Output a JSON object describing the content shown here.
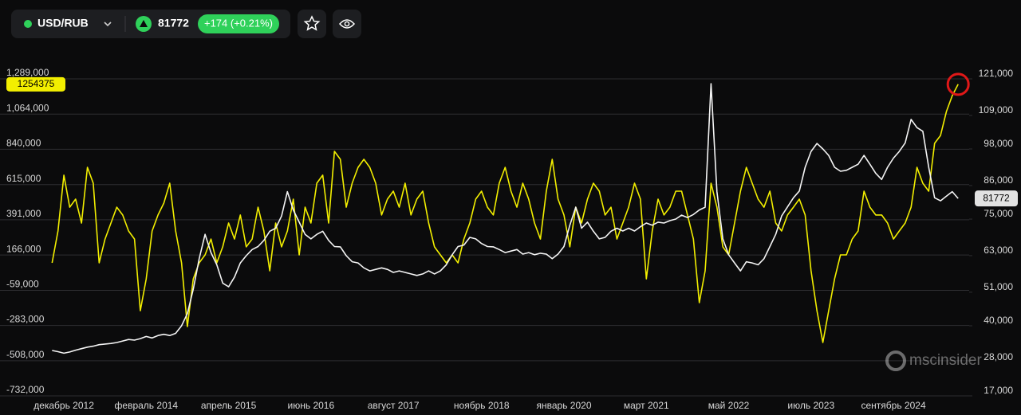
{
  "header": {
    "symbol": "USD/RUB",
    "change": "+174 (+0.21%)"
  },
  "watermark": "mscinsider",
  "chart_data": {
    "type": "line",
    "categories": [
      null,
      null,
      "декабрь 2012",
      null,
      null,
      null,
      null,
      null,
      null,
      null,
      null,
      null,
      null,
      null,
      null,
      null,
      "февраль 2014",
      null,
      null,
      null,
      null,
      null,
      null,
      null,
      null,
      null,
      null,
      null,
      null,
      null,
      "апрель 2015",
      null,
      null,
      null,
      null,
      null,
      null,
      null,
      null,
      null,
      null,
      null,
      null,
      null,
      "июнь 2016",
      null,
      null,
      null,
      null,
      null,
      null,
      null,
      null,
      null,
      null,
      null,
      null,
      null,
      "август 2017",
      null,
      null,
      null,
      null,
      null,
      null,
      null,
      null,
      null,
      null,
      null,
      null,
      null,
      null,
      "ноябрь 2018",
      null,
      null,
      null,
      null,
      null,
      null,
      null,
      null,
      null,
      null,
      null,
      null,
      null,
      "январь 2020",
      null,
      null,
      null,
      null,
      null,
      null,
      null,
      null,
      null,
      null,
      null,
      null,
      null,
      "март 2021",
      null,
      null,
      null,
      null,
      null,
      null,
      null,
      null,
      null,
      null,
      null,
      null,
      null,
      "май 2022",
      null,
      null,
      null,
      null,
      null,
      null,
      null,
      null,
      null,
      null,
      null,
      null,
      null,
      "июль 2023",
      null,
      null,
      null,
      null,
      null,
      null,
      null,
      null,
      null,
      null,
      null,
      null,
      null,
      "сентябрь 2024",
      null,
      null,
      null,
      null,
      null,
      null,
      null,
      null,
      null,
      null,
      null
    ],
    "series": [
      {
        "color": "#f2ee00",
        "axis": "y",
        "values": [
          116000,
          319000,
          675000,
          471000,
          522000,
          370000,
          725000,
          624000,
          116000,
          268000,
          370000,
          471000,
          421000,
          319000,
          268000,
          -189000,
          14000,
          319000,
          421000,
          497000,
          624000,
          319000,
          116000,
          -290000,
          14000,
          116000,
          167000,
          268000,
          116000,
          218000,
          370000,
          268000,
          421000,
          218000,
          268000,
          471000,
          319000,
          65000,
          370000,
          218000,
          319000,
          522000,
          167000,
          471000,
          370000,
          624000,
          675000,
          370000,
          827000,
          776000,
          471000,
          624000,
          725000,
          776000,
          725000,
          624000,
          421000,
          522000,
          573000,
          471000,
          624000,
          421000,
          522000,
          573000,
          370000,
          218000,
          167000,
          116000,
          167000,
          116000,
          268000,
          370000,
          522000,
          573000,
          471000,
          421000,
          624000,
          725000,
          573000,
          471000,
          624000,
          522000,
          370000,
          268000,
          573000,
          776000,
          522000,
          421000,
          218000,
          471000,
          370000,
          522000,
          624000,
          573000,
          421000,
          471000,
          268000,
          370000,
          471000,
          624000,
          522000,
          14000,
          319000,
          522000,
          421000,
          471000,
          573000,
          573000,
          421000,
          268000,
          -138000,
          65000,
          624000,
          471000,
          218000,
          167000,
          370000,
          573000,
          725000,
          624000,
          522000,
          471000,
          573000,
          370000,
          319000,
          421000,
          471000,
          522000,
          421000,
          65000,
          -189000,
          -392000,
          -189000,
          14000,
          167000,
          167000,
          268000,
          319000,
          573000,
          471000,
          421000,
          421000,
          370000,
          268000,
          319000,
          370000,
          471000,
          725000,
          624000,
          573000,
          878000,
          928000,
          1081000,
          1182000,
          1254375
        ]
      },
      {
        "color": "#f4f4f4",
        "axis": "y2",
        "values": [
          31900,
          31500,
          31000,
          31400,
          32000,
          32500,
          33000,
          33300,
          33800,
          34000,
          34200,
          34500,
          35000,
          35500,
          35300,
          35800,
          36500,
          36000,
          36800,
          37200,
          36800,
          37500,
          40000,
          44000,
          52000,
          62000,
          70000,
          64000,
          60000,
          54000,
          52800,
          56000,
          60600,
          63000,
          65000,
          66000,
          68000,
          71000,
          72000,
          76000,
          84000,
          78000,
          74000,
          70000,
          68500,
          70000,
          71000,
          68000,
          66000,
          65900,
          63000,
          61000,
          60600,
          59000,
          58000,
          58500,
          59000,
          58500,
          57500,
          58000,
          57500,
          57000,
          56500,
          57000,
          58000,
          57000,
          58000,
          60000,
          63300,
          66000,
          66500,
          69000,
          68500,
          67000,
          66000,
          65900,
          65000,
          64000,
          64500,
          65000,
          63500,
          64000,
          63300,
          63800,
          63500,
          62000,
          63500,
          66000,
          73000,
          78900,
          72000,
          74000,
          71000,
          68500,
          69000,
          71000,
          72000,
          71100,
          72000,
          71100,
          72500,
          73700,
          73000,
          74000,
          73700,
          74500,
          75000,
          76300,
          75500,
          76500,
          78000,
          78900,
          119400,
          84000,
          68500,
          63300,
          60600,
          58000,
          61000,
          60600,
          60000,
          62000,
          66000,
          70000,
          76000,
          79000,
          82000,
          84200,
          92000,
          97200,
          99800,
          98000,
          95900,
          92000,
          90700,
          91000,
          92000,
          93000,
          95900,
          93000,
          90000,
          88000,
          92000,
          95000,
          97200,
          100000,
          107700,
          105000,
          103800,
          92000,
          82000,
          81000,
          82500,
          84000,
          81772
        ]
      }
    ],
    "ylim": [
      -732000,
      1289000
    ],
    "yticks": [
      {
        "value": -732000,
        "label": "-732,000"
      },
      {
        "value": -508000,
        "label": "-508,000"
      },
      {
        "value": -283000,
        "label": "-283,000"
      },
      {
        "value": -59000,
        "label": "-59,000"
      },
      {
        "value": 166000,
        "label": "166,000"
      },
      {
        "value": 391000,
        "label": "391,000"
      },
      {
        "value": 615000,
        "label": "615,000"
      },
      {
        "value": 840000,
        "label": "840,000"
      },
      {
        "value": 1064000,
        "label": "1,064,000"
      },
      {
        "value": 1289000,
        "label": "1,289,000"
      }
    ],
    "y2lim": [
      17000,
      121000
    ],
    "y2ticks": [
      {
        "value": 17000,
        "label": "17,000"
      },
      {
        "value": 28000,
        "label": "28,000"
      },
      {
        "value": 40000,
        "label": "40,000"
      },
      {
        "value": 51000,
        "label": "51,000"
      },
      {
        "value": 63000,
        "label": "63,000"
      },
      {
        "value": 75000,
        "label": "75,000"
      },
      {
        "value": 86000,
        "label": "86,000"
      },
      {
        "value": 98000,
        "label": "98,000"
      },
      {
        "value": 109000,
        "label": "109,000"
      },
      {
        "value": 121000,
        "label": "121,000"
      }
    ],
    "grid": true
  }
}
